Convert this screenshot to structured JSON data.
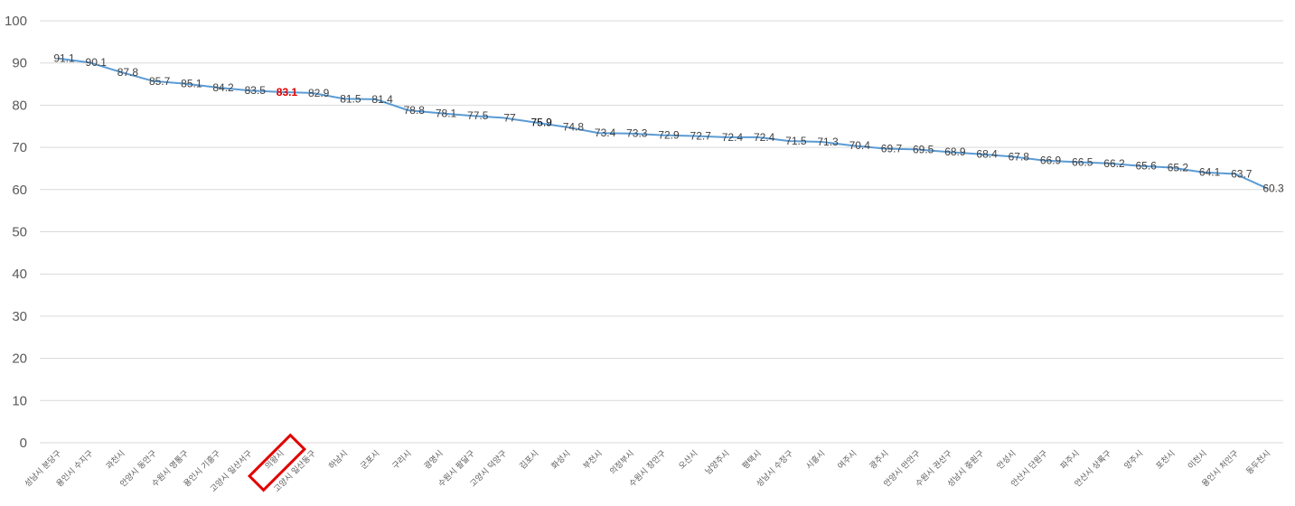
{
  "chart_data": {
    "type": "line",
    "title": "",
    "xlabel": "",
    "ylabel": "",
    "ylim": [
      0,
      100
    ],
    "yticks": [
      0,
      10,
      20,
      30,
      40,
      50,
      60,
      70,
      80,
      90,
      100
    ],
    "grid": true,
    "legend": "none",
    "highlight_category": "의왕시",
    "colors": {
      "line": "#5b9bd5",
      "highlight": "#e00000",
      "grid": "#d9d9d9"
    },
    "categories": [
      "성남시 분당구",
      "용인시 수지구",
      "과천시",
      "안양시 동안구",
      "수원시 영통구",
      "용인시 기흥구",
      "고양시 일산서구",
      "의왕시",
      "고양시 일산동구",
      "하남시",
      "군포시",
      "구리시",
      "광명시",
      "수원시 팔달구",
      "고양시 덕양구",
      "김포시",
      "화성시",
      "부천시",
      "의정부시",
      "수원시 장안구",
      "오산시",
      "남양주시",
      "평택시",
      "성남시 수정구",
      "시흥시",
      "여주시",
      "광주시",
      "안양시 만안구",
      "수원시 권선구",
      "성남시 중원구",
      "안성시",
      "안산시 단원구",
      "파주시",
      "안산시 상록구",
      "양주시",
      "포천시",
      "이천시",
      "용인시 처인구",
      "동두천시"
    ],
    "series": [
      {
        "values": [
          91.1,
          90.1,
          87.8,
          85.7,
          85.1,
          84.2,
          83.5,
          83.1,
          82.9,
          81.5,
          81.4,
          78.8,
          78.1,
          77.5,
          77,
          75.9,
          74.8,
          73.4,
          73.3,
          72.9,
          72.7,
          72.4,
          72.4,
          71.5,
          71.3,
          70.4,
          69.7,
          69.5,
          68.9,
          68.4,
          67.8,
          66.9,
          66.5,
          66.2,
          65.6,
          65.2,
          64.1,
          63.7,
          60.3
        ]
      }
    ],
    "data_labels": [
      "91.1",
      "90.1",
      "87.8",
      "85.7",
      "85.1",
      "84.2",
      "83.5",
      "83.1",
      "82.9",
      "81.5",
      "81.4",
      "78.8",
      "78.1",
      "77.5",
      "77",
      "75.9",
      "74.8",
      "73.4",
      "73.3",
      "72.9",
      "72.7",
      "72.4",
      "72.4",
      "71.5",
      "71.3",
      "70.4",
      "69.7",
      "69.5",
      "68.9",
      "68.4",
      "67.8",
      "66.9",
      "66.5",
      "66.2",
      "65.6",
      "65.2",
      "64.1",
      "63.7",
      "60.3"
    ]
  }
}
